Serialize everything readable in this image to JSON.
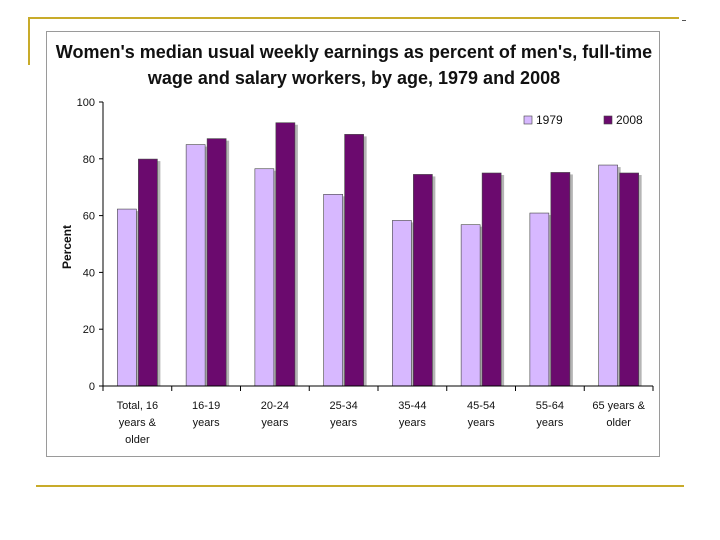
{
  "chart_data": {
    "type": "bar",
    "title_lines": [
      "Women's median usual weekly earnings as percent of men's, full-time",
      "wage and salary workers, by age, 1979 and 2008"
    ],
    "ylabel": "Percent",
    "xlabel": "",
    "ylim": [
      0,
      100
    ],
    "yticks": [
      0,
      20,
      40,
      60,
      80,
      100
    ],
    "categories": [
      [
        "Total, 16",
        "years &",
        "older"
      ],
      [
        "16-19",
        "years"
      ],
      [
        "20-24",
        "years"
      ],
      [
        "25-34",
        "years"
      ],
      [
        "35-44",
        "years"
      ],
      [
        "45-54",
        "years"
      ],
      [
        "55-64",
        "years"
      ],
      [
        "65 years &",
        "older"
      ]
    ],
    "series": [
      {
        "name": "1979",
        "color": "#d7b8ff",
        "values": [
          62.3,
          85.0,
          76.5,
          67.5,
          58.3,
          56.8,
          60.9,
          77.8
        ]
      },
      {
        "name": "2008",
        "color": "#6b0a6e",
        "values": [
          79.9,
          87.1,
          92.7,
          88.6,
          74.5,
          75.0,
          75.2,
          75.0
        ]
      }
    ],
    "legend_position": "top-right",
    "grid": false
  }
}
